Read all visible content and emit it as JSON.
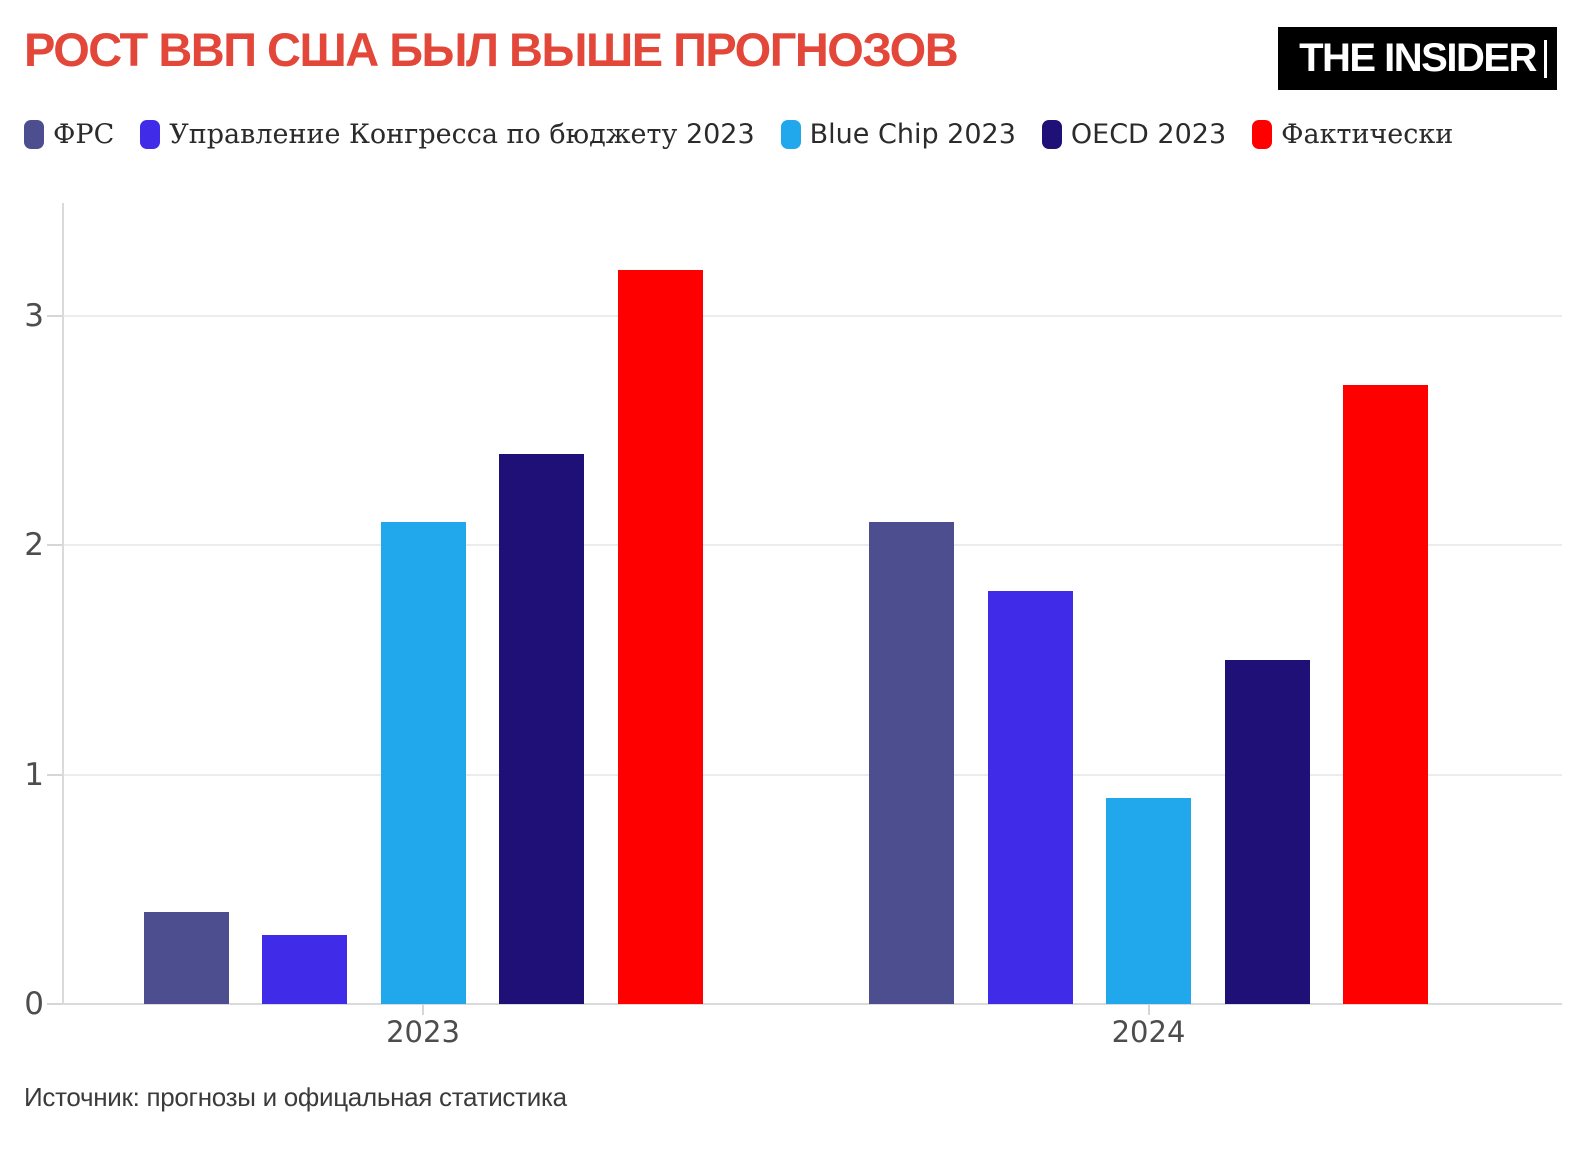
{
  "header": {
    "title": "РОСТ ВВП США БЫЛ ВЫШЕ ПРОГНОЗОВ",
    "title_color": "#e2473a",
    "logo_text": "THE INSIDER"
  },
  "chart_data": {
    "type": "bar",
    "title": "РОСТ ВВП США БЫЛ ВЫШЕ ПРОГНОЗОВ",
    "categories": [
      "2023",
      "2024"
    ],
    "series": [
      {
        "name": "ФРС",
        "color": "#4c4e90",
        "values": [
          0.4,
          2.1
        ]
      },
      {
        "name": "Управление Конгресса по бюджету 2023",
        "color": "#3f2be8",
        "values": [
          0.3,
          1.8
        ]
      },
      {
        "name": "Blue Chip 2023",
        "color": "#21a7eb",
        "values": [
          2.1,
          0.9
        ]
      },
      {
        "name": "OECD 2023",
        "color": "#1f1077",
        "values": [
          2.4,
          1.5
        ]
      },
      {
        "name": "Фактически",
        "color": "#fe0000",
        "values": [
          3.2,
          2.7
        ]
      }
    ],
    "xlabel": "",
    "ylabel": "",
    "ylim": [
      0,
      3.5
    ],
    "yticks": [
      0,
      1,
      2,
      3
    ],
    "grid": true,
    "legend_position": "top-left"
  },
  "footer": {
    "source": "Источник: прогнозы и офицальная статистика"
  }
}
